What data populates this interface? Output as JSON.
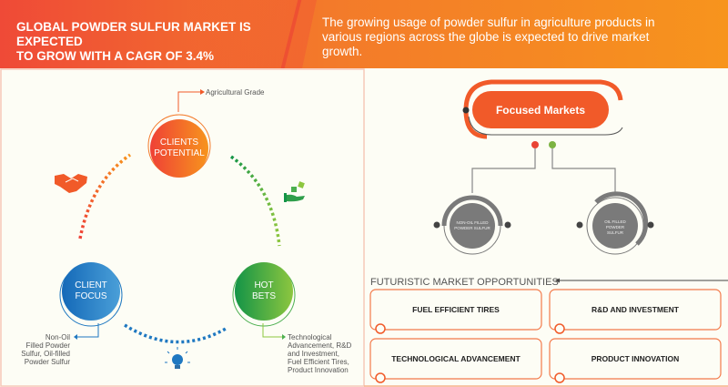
{
  "header": {
    "title_line1": "GLOBAL POWDER SULFUR MARKET IS EXPECTED",
    "title_line2": "TO GROW WITH A CAGR OF 3.4%",
    "description": "The growing usage of powder sulfur in agriculture products in various regions across the globe is expected to drive market growth."
  },
  "cycle": {
    "clients_potential": {
      "line1": "CLIENTS",
      "line2": "POTENTIAL",
      "note": "Agricultural Grade"
    },
    "client_focus": {
      "line1": "CLIENT",
      "line2": "FOCUS",
      "note": [
        "Non-Oil",
        "Filled Powder",
        "Sulfur,  Oil-filled",
        "Powder Sulfur"
      ]
    },
    "hot_bets": {
      "line1": "HOT",
      "line2": "BETS",
      "note": [
        "Technological",
        "Advancement, R&D",
        "and Investment,",
        "Fuel Efficient Tires,",
        "Product Innovation"
      ]
    },
    "icons": [
      "handshake-icon",
      "money-hand-icon",
      "lightbulb-icon"
    ]
  },
  "focused_markets": {
    "title": "Focused Markets",
    "markets": [
      {
        "lines": [
          "NON-OIL FILLED",
          "POWDER SULFUR"
        ]
      },
      {
        "lines": [
          "OIL FILLED",
          "POWDER",
          "SULFUR"
        ]
      }
    ]
  },
  "opportunities": {
    "title": "FUTURISTIC MARKET OPPORTUNITIES",
    "items": [
      "FUEL EFFICIENT TIRES",
      "R&D AND INVESTMENT",
      "TECHNOLOGICAL ADVANCEMENT",
      "PRODUCT INNOVATION"
    ]
  },
  "colors": {
    "orange": "#f15a29",
    "green": "#4caf50",
    "blue": "#1f78c1",
    "grey": "#7a7a7a"
  }
}
